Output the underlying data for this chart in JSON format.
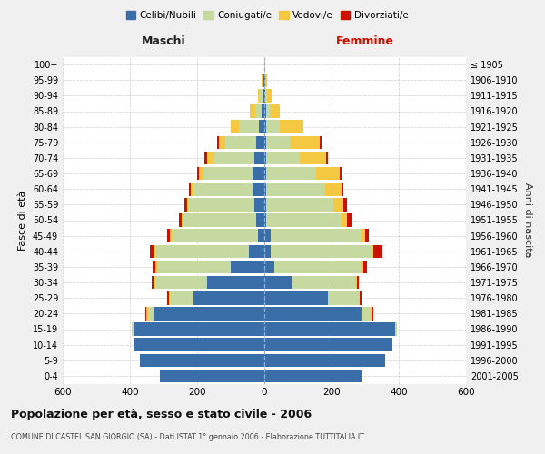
{
  "age_groups": [
    "0-4",
    "5-9",
    "10-14",
    "15-19",
    "20-24",
    "25-29",
    "30-34",
    "35-39",
    "40-44",
    "45-49",
    "50-54",
    "55-59",
    "60-64",
    "65-69",
    "70-74",
    "75-79",
    "80-84",
    "85-89",
    "90-94",
    "95-99",
    "100+"
  ],
  "birth_years": [
    "2001-2005",
    "1996-2000",
    "1991-1995",
    "1986-1990",
    "1981-1985",
    "1976-1980",
    "1971-1975",
    "1966-1970",
    "1961-1965",
    "1956-1960",
    "1951-1955",
    "1946-1950",
    "1941-1945",
    "1936-1940",
    "1931-1935",
    "1926-1930",
    "1921-1925",
    "1916-1920",
    "1911-1915",
    "1906-1910",
    "≤ 1905"
  ],
  "male_celibi": [
    310,
    370,
    390,
    390,
    330,
    210,
    170,
    100,
    45,
    20,
    25,
    30,
    35,
    35,
    30,
    25,
    15,
    8,
    5,
    2,
    0
  ],
  "male_coniugati": [
    0,
    0,
    0,
    5,
    15,
    70,
    155,
    220,
    280,
    255,
    215,
    195,
    175,
    150,
    120,
    90,
    60,
    20,
    10,
    3,
    0
  ],
  "male_vedovi": [
    0,
    0,
    0,
    0,
    5,
    5,
    5,
    5,
    5,
    5,
    5,
    5,
    10,
    10,
    20,
    20,
    25,
    15,
    5,
    2,
    0
  ],
  "male_divorziati": [
    0,
    0,
    0,
    0,
    5,
    5,
    5,
    8,
    10,
    10,
    8,
    8,
    5,
    5,
    8,
    5,
    0,
    0,
    0,
    0,
    0
  ],
  "female_celibi": [
    290,
    360,
    380,
    390,
    290,
    190,
    80,
    30,
    20,
    20,
    5,
    5,
    5,
    5,
    5,
    5,
    5,
    5,
    2,
    2,
    0
  ],
  "female_coniugati": [
    0,
    0,
    0,
    5,
    25,
    90,
    190,
    260,
    300,
    270,
    225,
    200,
    175,
    150,
    100,
    70,
    40,
    10,
    5,
    2,
    0
  ],
  "female_vedovi": [
    0,
    0,
    0,
    0,
    5,
    5,
    5,
    5,
    5,
    10,
    15,
    30,
    50,
    70,
    80,
    90,
    70,
    30,
    15,
    5,
    2
  ],
  "female_divorziati": [
    0,
    0,
    0,
    0,
    5,
    5,
    5,
    10,
    25,
    10,
    15,
    10,
    5,
    5,
    5,
    5,
    0,
    0,
    0,
    0,
    0
  ],
  "colors": {
    "celibi": "#3a6ea8",
    "coniugati": "#c5d9a0",
    "vedovi": "#f5c842",
    "divorziati": "#cc1100"
  },
  "title": "Popolazione per età, sesso e stato civile - 2006",
  "subtitle": "COMUNE DI CASTEL SAN GIORGIO (SA) - Dati ISTAT 1° gennaio 2006 - Elaborazione TUTTITALIA.IT",
  "xlabel_left": "Maschi",
  "xlabel_right": "Femmine",
  "ylabel_left": "Fasce di età",
  "ylabel_right": "Anni di nascita",
  "xlim": 600,
  "bg_color": "#f0f0f0",
  "plot_bg": "#ffffff",
  "grid_color": "#cccccc"
}
